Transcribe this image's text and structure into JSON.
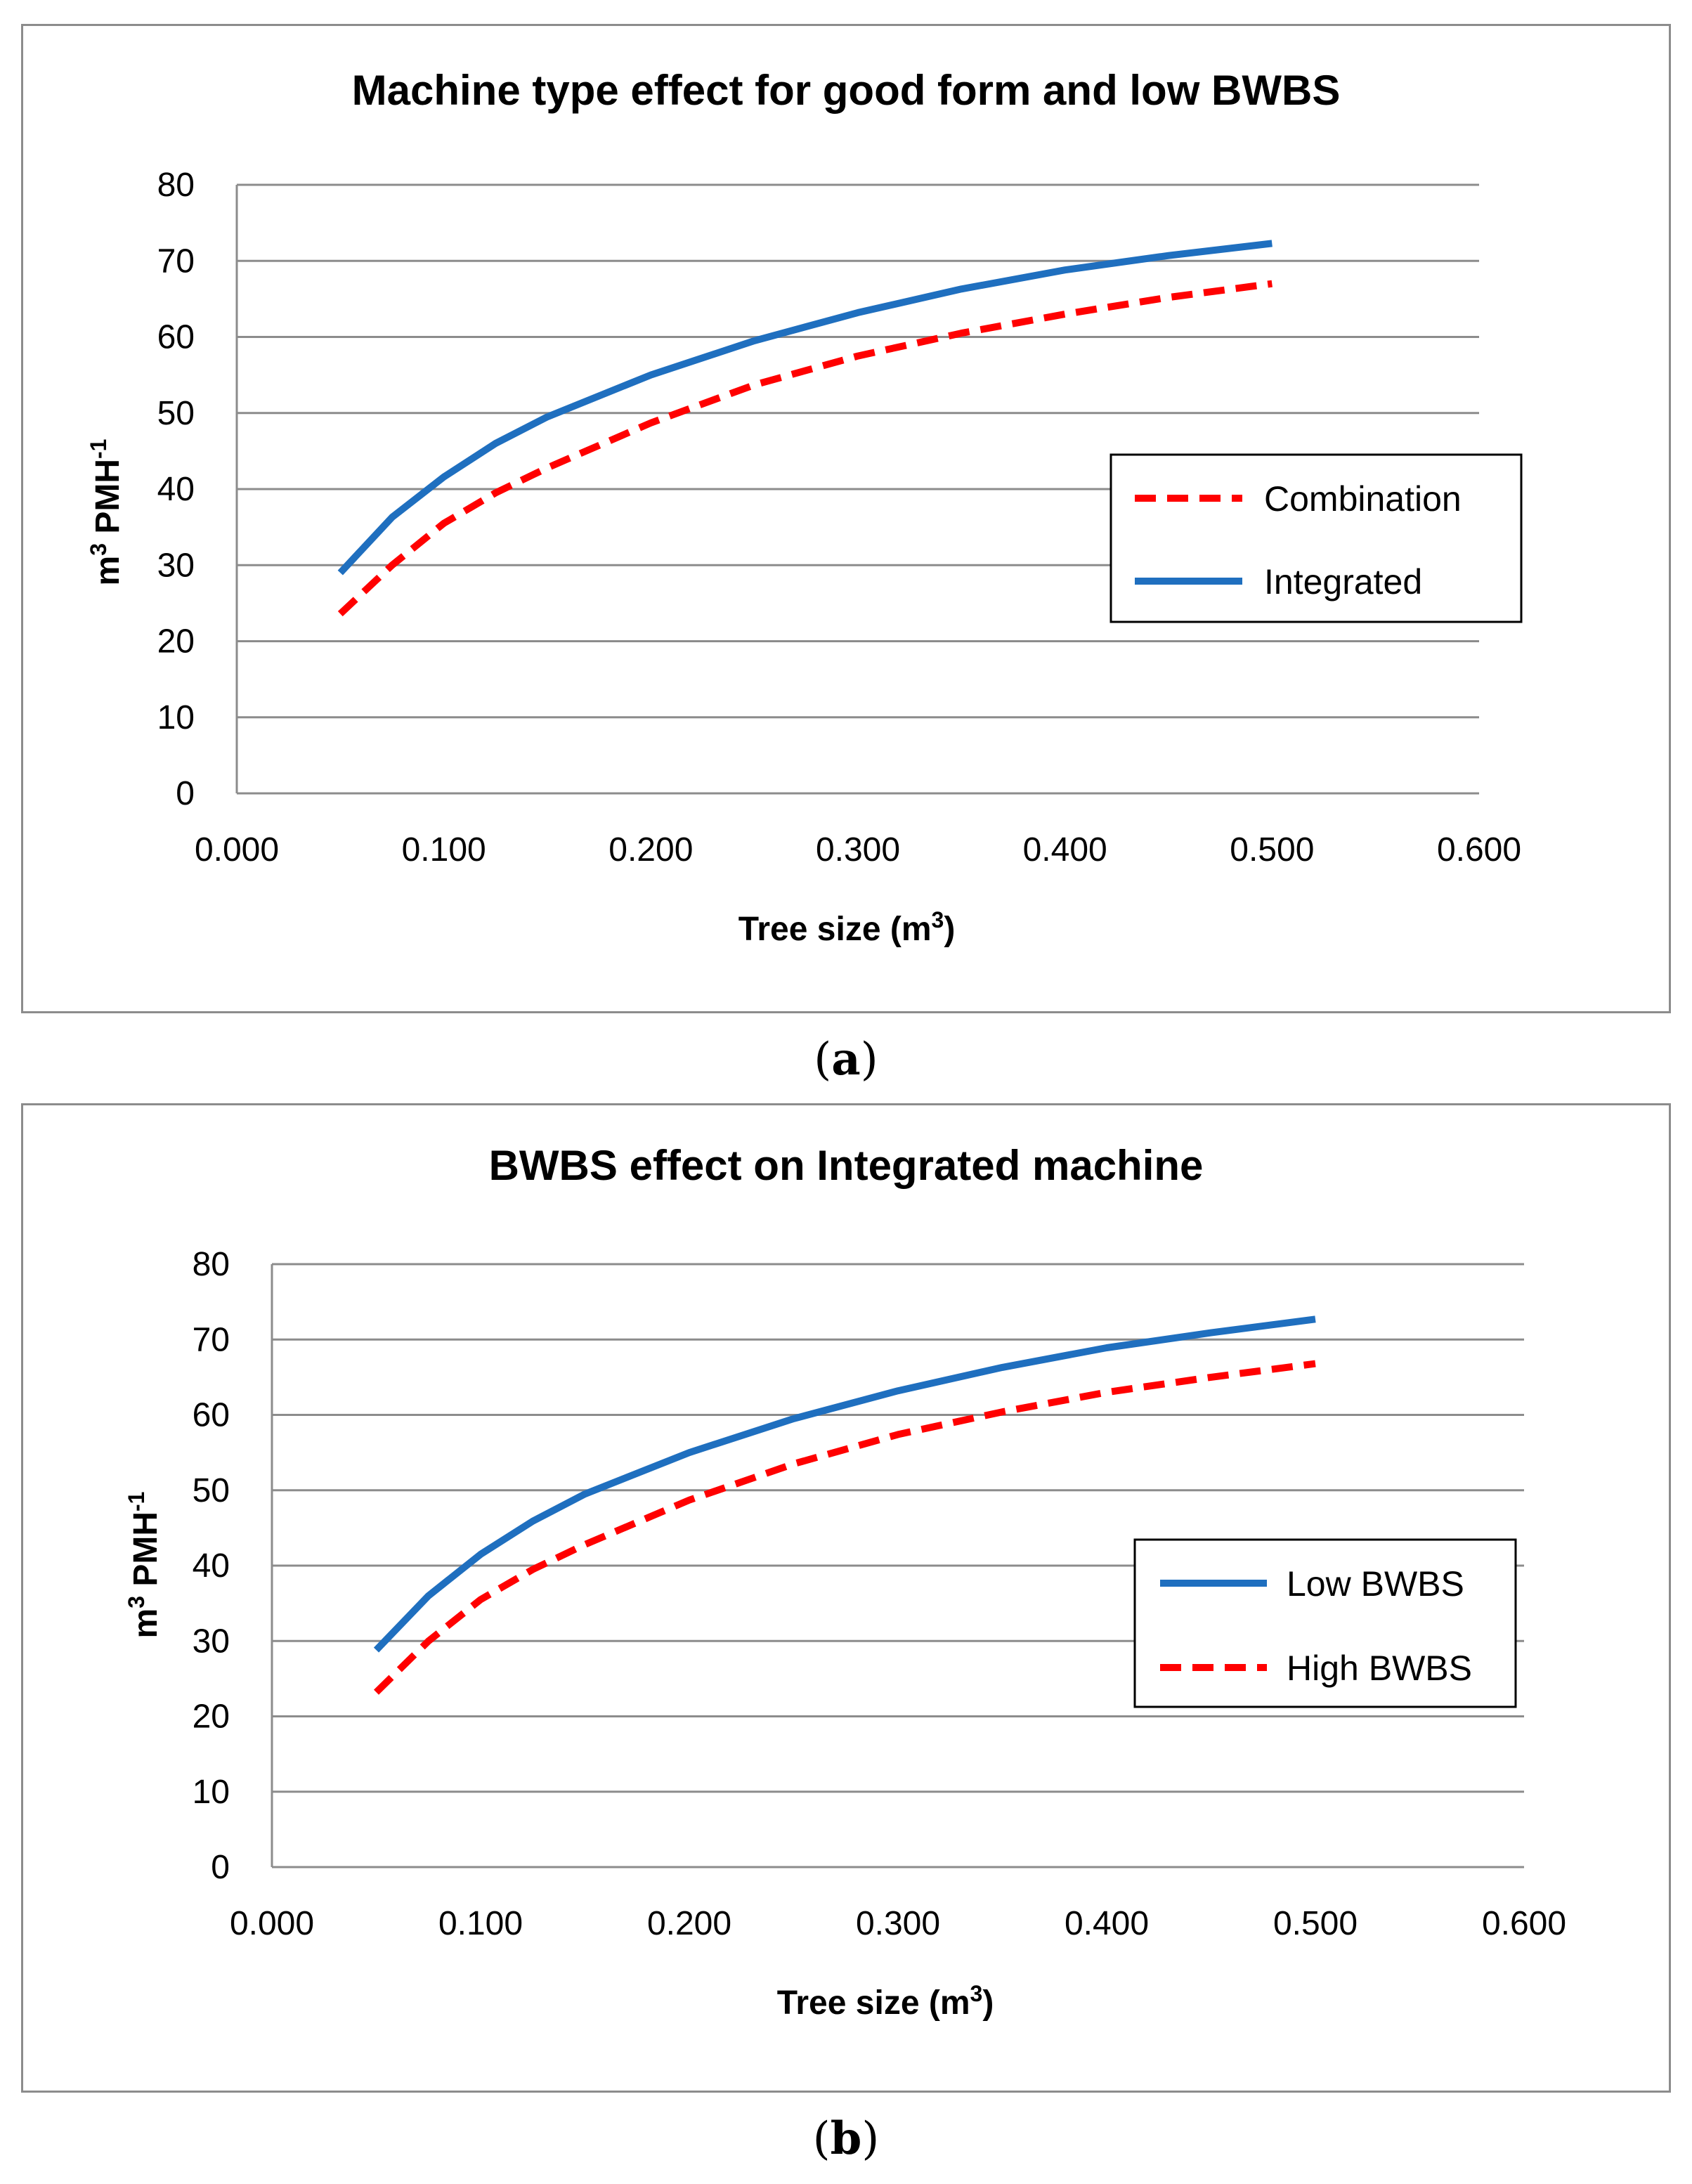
{
  "chart_data": [
    {
      "type": "line",
      "panel": "a",
      "title": "Machine type effect for good form and low BWBS",
      "xlabel": "Tree size (m",
      "xlabel_sup": "3",
      "xlabel_end": ")",
      "ylabel": "m",
      "ylabel_sup": "3",
      "ylabel_mid": " PMH",
      "ylabel_sup2": "-1",
      "xlim": [
        0,
        0.6
      ],
      "ylim": [
        0,
        80
      ],
      "x_ticks": [
        "0.000",
        "0.100",
        "0.200",
        "0.300",
        "0.400",
        "0.500",
        "0.600"
      ],
      "y_ticks": [
        "0",
        "10",
        "20",
        "30",
        "40",
        "50",
        "60",
        "70",
        "80"
      ],
      "x": [
        0.05,
        0.075,
        0.1,
        0.125,
        0.15,
        0.2,
        0.25,
        0.3,
        0.35,
        0.4,
        0.45,
        0.5
      ],
      "series": [
        {
          "name": "Combination",
          "style": "dashed",
          "color": "#ff0000",
          "values": [
            23.6,
            30.0,
            35.5,
            39.5,
            42.8,
            48.7,
            53.7,
            57.5,
            60.5,
            63.0,
            65.2,
            67.0
          ]
        },
        {
          "name": "Integrated",
          "style": "solid",
          "color": "#1f6fbf",
          "values": [
            29.0,
            36.3,
            41.6,
            46.0,
            49.5,
            55.0,
            59.5,
            63.2,
            66.3,
            68.8,
            70.7,
            72.3
          ]
        }
      ],
      "legend_order": [
        "Combination",
        "Integrated"
      ],
      "caption_open": "(",
      "caption_letter": "a",
      "caption_close": ")"
    },
    {
      "type": "line",
      "panel": "b",
      "title": "BWBS effect on Integrated machine",
      "xlabel": "Tree size (m",
      "xlabel_sup": "3",
      "xlabel_end": ")",
      "ylabel": "m",
      "ylabel_sup": "3",
      "ylabel_mid": " PMH",
      "ylabel_sup2": "-1",
      "xlim": [
        0,
        0.6
      ],
      "ylim": [
        0,
        80
      ],
      "x_ticks": [
        "0.000",
        "0.100",
        "0.200",
        "0.300",
        "0.400",
        "0.500",
        "0.600"
      ],
      "y_ticks": [
        "0",
        "10",
        "20",
        "30",
        "40",
        "50",
        "60",
        "70",
        "80"
      ],
      "x": [
        0.05,
        0.075,
        0.1,
        0.125,
        0.15,
        0.2,
        0.25,
        0.3,
        0.35,
        0.4,
        0.45,
        0.5
      ],
      "series": [
        {
          "name": "Low BWBS",
          "style": "solid",
          "color": "#1f6fbf",
          "values": [
            28.8,
            36.0,
            41.5,
            45.9,
            49.5,
            55.0,
            59.5,
            63.2,
            66.3,
            68.9,
            70.9,
            72.7
          ]
        },
        {
          "name": "High BWBS",
          "style": "dashed",
          "color": "#ff0000",
          "values": [
            23.2,
            30.0,
            35.5,
            39.5,
            42.8,
            48.7,
            53.5,
            57.4,
            60.4,
            63.0,
            65.0,
            66.8
          ]
        }
      ],
      "legend_order": [
        "Low BWBS",
        "High BWBS"
      ],
      "caption_open": "(",
      "caption_letter": "b",
      "caption_close": ")"
    }
  ]
}
